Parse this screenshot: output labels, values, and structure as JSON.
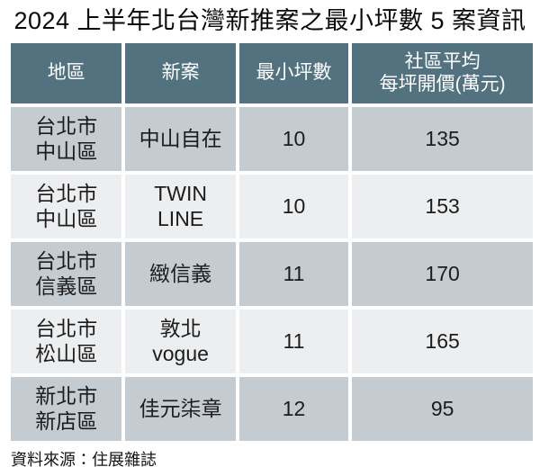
{
  "title": "2024 上半年北台灣新推案之最小坪數 5 案資訊",
  "source": "資料來源：住展雜誌",
  "table": {
    "columns": [
      "地區",
      "新案",
      "最小坪數",
      "社區平均\n每坪開價(萬元)"
    ],
    "rows": [
      [
        "台北市\n中山區",
        "中山自在",
        "10",
        "135"
      ],
      [
        "台北市\n中山區",
        "TWIN\nLINE",
        "10",
        "153"
      ],
      [
        "台北市\n信義區",
        "緻信義",
        "11",
        "170"
      ],
      [
        "台北市\n松山區",
        "敦北\nvogue",
        "11",
        "165"
      ],
      [
        "新北市\n新店區",
        "佳元柒章",
        "12",
        "95"
      ]
    ]
  },
  "chart_data": {
    "type": "table",
    "title": "2024 上半年北台灣新推案之最小坪數 5 案資訊",
    "columns": [
      "地區",
      "新案",
      "最小坪數",
      "社區平均每坪開價(萬元)"
    ],
    "rows": [
      [
        "台北市中山區",
        "中山自在",
        10,
        135
      ],
      [
        "台北市中山區",
        "TWIN LINE",
        10,
        153
      ],
      [
        "台北市信義區",
        "緻信義",
        11,
        170
      ],
      [
        "台北市松山區",
        "敦北vogue",
        11,
        165
      ],
      [
        "新北市新店區",
        "佳元柒章",
        12,
        95
      ]
    ],
    "source": "資料來源：住展雜誌"
  },
  "colors": {
    "header_bg": "#537280",
    "header_text": "#ffffff",
    "row_odd_bg": "#c4ccd2",
    "row_even_bg": "#edeeef",
    "body_text": "#1c1c1c"
  }
}
